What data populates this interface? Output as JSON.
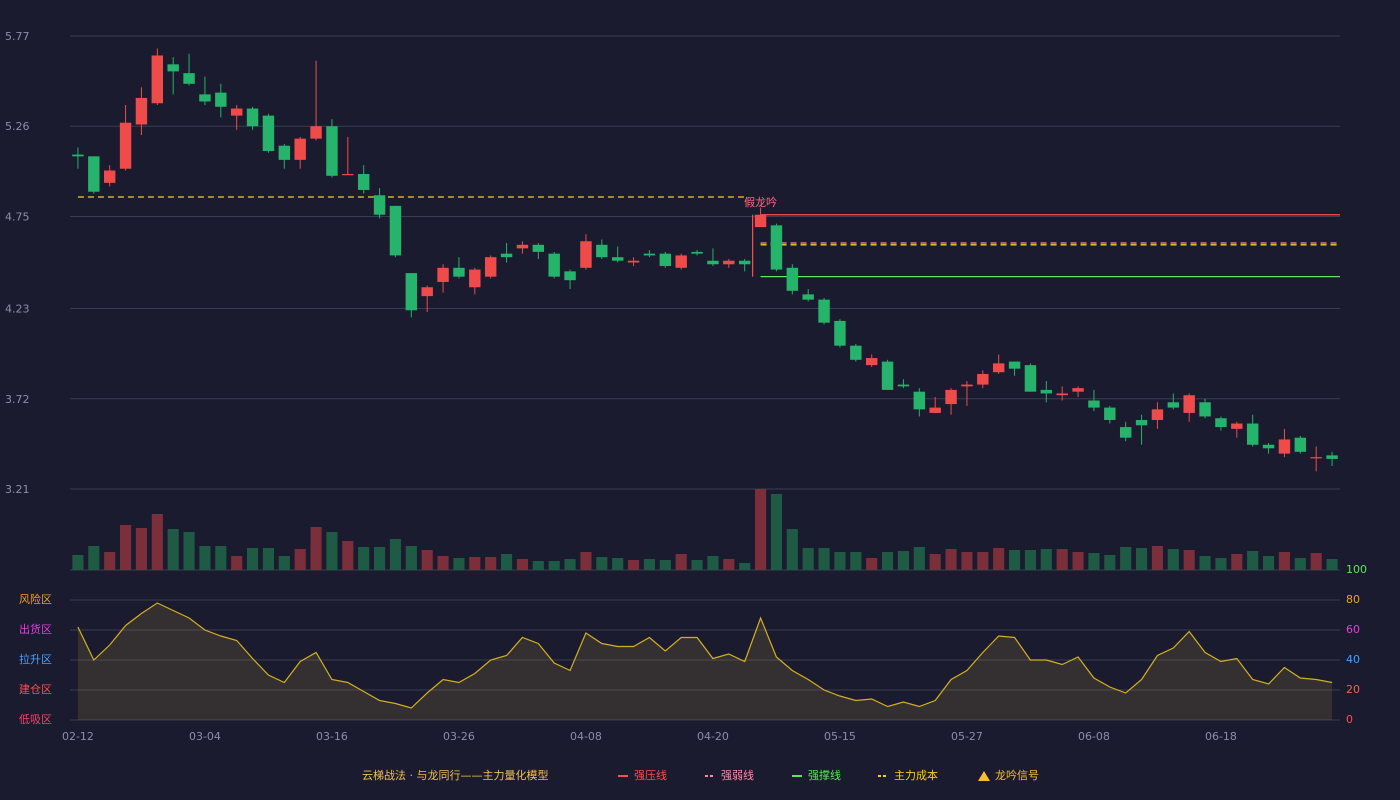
{
  "chart_data": {
    "type": "candlestick",
    "categories": [
      "02-12",
      null,
      null,
      null,
      null,
      null,
      null,
      null,
      "03-04",
      null,
      null,
      null,
      null,
      null,
      null,
      null,
      "03-16",
      null,
      null,
      null,
      null,
      null,
      null,
      null,
      "03-26",
      null,
      null,
      null,
      null,
      null,
      null,
      null,
      "04-08",
      null,
      null,
      null,
      null,
      null,
      null,
      null,
      "04-20",
      null,
      null,
      null,
      null,
      null,
      null,
      null,
      "05-15",
      null,
      null,
      null,
      null,
      null,
      null,
      null,
      "05-27",
      null,
      null,
      null,
      null,
      null,
      null,
      null,
      "06-08",
      null,
      null,
      null,
      null,
      null,
      null,
      null,
      "06-18",
      null,
      null,
      null,
      null,
      null,
      null,
      null
    ],
    "open": [
      5.1,
      5.09,
      4.94,
      5.02,
      5.27,
      5.39,
      5.61,
      5.56,
      5.44,
      5.45,
      5.32,
      5.36,
      5.32,
      5.15,
      5.07,
      5.19,
      5.26,
      4.99,
      4.99,
      4.87,
      4.81,
      4.43,
      4.3,
      4.38,
      4.46,
      4.35,
      4.41,
      4.54,
      4.57,
      4.59,
      4.54,
      4.44,
      4.46,
      4.59,
      4.52,
      4.49,
      4.54,
      4.54,
      4.46,
      4.55,
      4.5,
      4.48,
      4.5,
      4.69,
      4.7,
      4.46,
      4.31,
      4.28,
      4.16,
      4.02,
      3.91,
      3.93,
      3.8,
      3.76,
      3.64,
      3.69,
      3.79,
      3.8,
      3.87,
      3.93,
      3.91,
      3.77,
      3.74,
      3.76,
      3.71,
      3.67,
      3.56,
      3.6,
      3.6,
      3.7,
      3.64,
      3.7,
      3.61,
      3.55,
      3.58,
      3.46,
      3.41,
      3.5,
      3.39,
      3.4
    ],
    "high": [
      5.14,
      5.09,
      5.04,
      5.38,
      5.48,
      5.7,
      5.65,
      5.67,
      5.54,
      5.5,
      5.38,
      5.37,
      5.33,
      5.16,
      5.2,
      5.63,
      5.3,
      5.2,
      5.04,
      4.91,
      4.81,
      4.43,
      4.36,
      4.48,
      4.52,
      4.46,
      4.53,
      4.6,
      4.61,
      4.6,
      4.55,
      4.45,
      4.65,
      4.62,
      4.58,
      4.52,
      4.56,
      4.55,
      4.54,
      4.56,
      4.57,
      4.51,
      4.51,
      4.8,
      4.71,
      4.48,
      4.34,
      4.29,
      4.17,
      4.03,
      3.97,
      3.94,
      3.83,
      3.78,
      3.73,
      3.78,
      3.82,
      3.88,
      3.97,
      3.93,
      3.92,
      3.82,
      3.79,
      3.79,
      3.77,
      3.68,
      3.59,
      3.63,
      3.7,
      3.75,
      3.75,
      3.72,
      3.62,
      3.59,
      3.63,
      3.47,
      3.55,
      3.51,
      3.45,
      3.42
    ],
    "low": [
      5.02,
      4.88,
      4.92,
      5.01,
      5.21,
      5.38,
      5.44,
      5.49,
      5.38,
      5.31,
      5.24,
      5.24,
      5.11,
      5.02,
      5.02,
      5.18,
      4.97,
      4.99,
      4.88,
      4.74,
      4.52,
      4.18,
      4.21,
      4.32,
      4.4,
      4.31,
      4.4,
      4.49,
      4.54,
      4.51,
      4.4,
      4.34,
      4.45,
      4.51,
      4.49,
      4.47,
      4.52,
      4.46,
      4.45,
      4.53,
      4.47,
      4.46,
      4.44,
      4.69,
      4.44,
      4.31,
      4.27,
      4.14,
      4.01,
      3.93,
      3.9,
      3.77,
      3.78,
      3.62,
      3.64,
      3.63,
      3.68,
      3.78,
      3.86,
      3.85,
      3.76,
      3.7,
      3.71,
      3.73,
      3.65,
      3.58,
      3.48,
      3.46,
      3.55,
      3.66,
      3.59,
      3.61,
      3.54,
      3.5,
      3.45,
      3.41,
      3.39,
      3.41,
      3.31,
      3.34
    ],
    "close": [
      5.09,
      4.89,
      5.01,
      5.28,
      5.42,
      5.66,
      5.57,
      5.5,
      5.4,
      5.37,
      5.36,
      5.26,
      5.12,
      5.07,
      5.19,
      5.26,
      4.98,
      4.99,
      4.9,
      4.76,
      4.53,
      4.22,
      4.35,
      4.46,
      4.41,
      4.45,
      4.52,
      4.52,
      4.59,
      4.55,
      4.41,
      4.39,
      4.61,
      4.52,
      4.5,
      4.5,
      4.53,
      4.47,
      4.53,
      4.54,
      4.48,
      4.5,
      4.48,
      4.76,
      4.45,
      4.33,
      4.28,
      4.15,
      4.02,
      3.94,
      3.95,
      3.77,
      3.79,
      3.66,
      3.67,
      3.77,
      3.8,
      3.86,
      3.92,
      3.89,
      3.76,
      3.75,
      3.75,
      3.78,
      3.67,
      3.6,
      3.5,
      3.57,
      3.66,
      3.67,
      3.74,
      3.62,
      3.56,
      3.58,
      3.46,
      3.44,
      3.49,
      3.42,
      3.39,
      3.38
    ],
    "up_color": "#f04b4b",
    "down_color": "#26b36b",
    "ylim": [
      3.21,
      5.77
    ],
    "yticks": [
      3.21,
      3.72,
      4.23,
      4.75,
      5.26,
      5.77
    ],
    "grid": true,
    "volume": {
      "values": [
        15,
        24,
        18,
        45,
        42,
        56,
        41,
        38,
        24,
        24,
        14,
        22,
        22,
        14,
        21,
        43,
        38,
        29,
        23,
        23,
        31,
        24,
        20,
        14,
        12,
        13,
        13,
        16,
        11,
        9,
        9,
        11,
        18,
        13,
        12,
        10,
        11,
        10,
        16,
        10,
        14,
        11,
        7,
        81,
        76,
        41,
        22,
        22,
        18,
        18,
        12,
        18,
        19,
        23,
        16,
        21,
        18,
        18,
        22,
        20,
        20,
        21,
        21,
        18,
        17,
        15,
        23,
        22,
        24,
        21,
        20,
        14,
        12,
        16,
        19,
        14,
        18,
        12,
        17,
        11
      ],
      "up_color": "#7a2f3a",
      "down_color": "#1f5a45"
    },
    "levels": [
      {
        "name": "强压线",
        "color": "#ff4d4d",
        "dash": "solid",
        "segments": [
          {
            "from": 43,
            "value": 4.76
          }
        ]
      },
      {
        "name": "强弱线",
        "color": "#ff8aa8",
        "dash": "dashed",
        "segments": [
          {
            "from": 43,
            "value": 4.6
          }
        ]
      },
      {
        "name": "强撑线",
        "color": "#5ce65c",
        "dash": "solid",
        "segments": [
          {
            "from": 43,
            "value": 4.41
          }
        ]
      },
      {
        "name": "主力成本",
        "color": "#f5d020",
        "dash": "dashed",
        "segments": [
          {
            "from": 0,
            "to": 42,
            "value": 4.86
          },
          {
            "from": 43,
            "value": 4.59
          }
        ]
      }
    ],
    "signal": {
      "name": "龙吟信号",
      "color": "#f5c030",
      "events": [
        {
          "index": 43,
          "label": "假龙吟",
          "color": "#ff6b81"
        }
      ]
    },
    "legend_title": "云梯战法 · 与龙同行——主力量化模型",
    "indicator": {
      "values": [
        62,
        40,
        50,
        63,
        71,
        78,
        73,
        68,
        60,
        56,
        53,
        41,
        30,
        25,
        39,
        45,
        27,
        25,
        19,
        13,
        11,
        8,
        18,
        27,
        25,
        31,
        40,
        43,
        55,
        51,
        38,
        33,
        58,
        51,
        49,
        49,
        55,
        46,
        55,
        55,
        41,
        44,
        39,
        68,
        42,
        33,
        27,
        20,
        16,
        13,
        14,
        9,
        12,
        9,
        13,
        27,
        33,
        45,
        56,
        55,
        40,
        40,
        37,
        42,
        28,
        22,
        18,
        27,
        43,
        48,
        59,
        45,
        39,
        41,
        27,
        24,
        35,
        28,
        27,
        25
      ],
      "color": "#d4b020",
      "ylim": [
        0,
        100
      ],
      "yticks": [
        0,
        20,
        40,
        60,
        80,
        100
      ],
      "ytick_colors": [
        "#ff4d4d",
        "#ff5a5a",
        "#4aa0ff",
        "#e040e0",
        "#f0a030",
        "#5ce65c"
      ],
      "zones": [
        {
          "value": 0,
          "label": "低吸区",
          "color": "#ff4060"
        },
        {
          "value": 20,
          "label": "建仓区",
          "color": "#ff5050"
        },
        {
          "value": 40,
          "label": "拉升区",
          "color": "#4aa0ff"
        },
        {
          "value": 60,
          "label": "出货区",
          "color": "#e040e0"
        },
        {
          "value": 80,
          "label": "风险区",
          "color": "#f0a030"
        }
      ]
    }
  }
}
